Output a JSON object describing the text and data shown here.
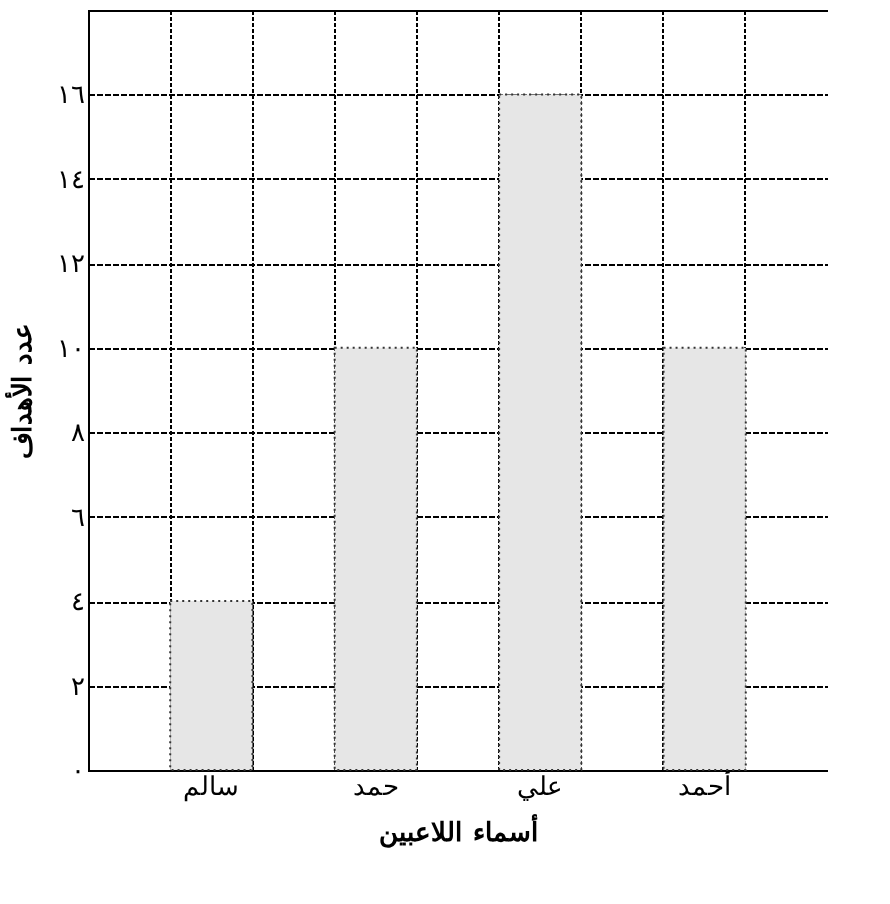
{
  "chart_data": {
    "type": "bar",
    "xlabel": "أسماء اللاعبين",
    "ylabel": "عدد الأهداف",
    "categories": [
      null,
      "سالم",
      null,
      "حمد",
      null,
      "علي",
      null,
      "أحمد",
      null
    ],
    "values": [
      null,
      4,
      null,
      10,
      null,
      16,
      null,
      10,
      null
    ],
    "color": "#e6e6e6",
    "ylim": [
      0,
      18
    ],
    "yticks": [
      {
        "value": 0,
        "label": "٠"
      },
      {
        "value": 2,
        "label": "٢"
      },
      {
        "value": 4,
        "label": "٤"
      },
      {
        "value": 6,
        "label": "٦"
      },
      {
        "value": 8,
        "label": "٨"
      },
      {
        "value": 10,
        "label": "١٠"
      },
      {
        "value": 12,
        "label": "١٢"
      },
      {
        "value": 14,
        "label": "١٤"
      },
      {
        "value": 16,
        "label": "١٦"
      }
    ],
    "grid": true
  }
}
